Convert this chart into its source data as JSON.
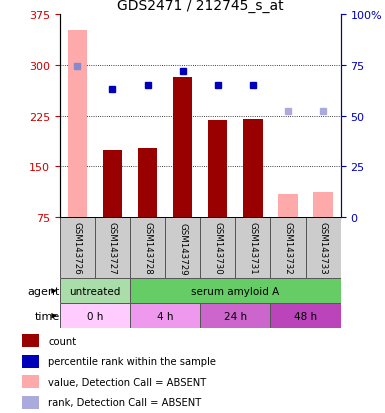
{
  "title": "GDS2471 / 212745_s_at",
  "samples": [
    "GSM143726",
    "GSM143727",
    "GSM143728",
    "GSM143729",
    "GSM143730",
    "GSM143731",
    "GSM143732",
    "GSM143733"
  ],
  "bar_values": [
    352,
    175,
    178,
    283,
    218,
    220,
    110,
    112
  ],
  "bar_colors": [
    "#ffaaaa",
    "#990000",
    "#990000",
    "#990000",
    "#990000",
    "#990000",
    "#ffaaaa",
    "#ffaaaa"
  ],
  "dot_values": [
    298,
    265,
    271,
    291,
    270,
    271,
    232,
    232
  ],
  "dot_colors": [
    "#8888cc",
    "#0000bb",
    "#0000bb",
    "#0000bb",
    "#0000bb",
    "#0000bb",
    "#aaaadd",
    "#aaaadd"
  ],
  "ylim_left": [
    75,
    375
  ],
  "ylim_right": [
    0,
    100
  ],
  "yticks_left": [
    75,
    150,
    225,
    300,
    375
  ],
  "yticks_right": [
    0,
    25,
    50,
    75,
    100
  ],
  "left_tick_color": "#cc0000",
  "right_tick_color": "#0000bb",
  "agent_groups": [
    {
      "label": "untreated",
      "span": [
        0,
        2
      ],
      "color": "#aaddaa"
    },
    {
      "label": "serum amyloid A",
      "span": [
        2,
        8
      ],
      "color": "#66cc66"
    }
  ],
  "time_groups": [
    {
      "label": "0 h",
      "span": [
        0,
        2
      ],
      "color": "#ffccff"
    },
    {
      "label": "4 h",
      "span": [
        2,
        4
      ],
      "color": "#ee99ee"
    },
    {
      "label": "24 h",
      "span": [
        4,
        6
      ],
      "color": "#cc66cc"
    },
    {
      "label": "48 h",
      "span": [
        6,
        8
      ],
      "color": "#bb44bb"
    }
  ],
  "legend_items": [
    {
      "color": "#990000",
      "label": "count"
    },
    {
      "color": "#0000bb",
      "label": "percentile rank within the sample"
    },
    {
      "color": "#ffaaaa",
      "label": "value, Detection Call = ABSENT"
    },
    {
      "color": "#aaaadd",
      "label": "rank, Detection Call = ABSENT"
    }
  ],
  "bar_width": 0.55,
  "agent_label": "agent",
  "time_label": "time",
  "grid_lines": [
    150,
    225,
    300
  ]
}
